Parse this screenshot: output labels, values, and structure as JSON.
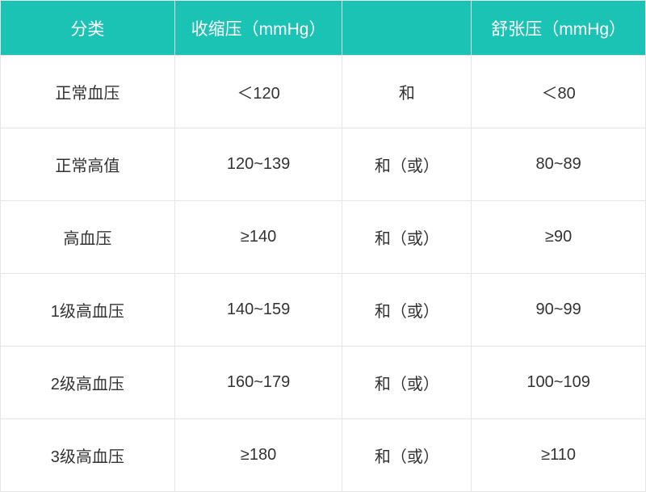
{
  "table": {
    "type": "table",
    "header_bg": "#1bc3b5",
    "header_text_color": "#ffffff",
    "cell_text_color": "#333333",
    "border_color": "#e6e6e6",
    "background_color": "#ffffff",
    "header_fontsize": 21,
    "cell_fontsize": 20,
    "columns": [
      {
        "key": "category",
        "label": "分类",
        "width": "27%"
      },
      {
        "key": "systolic",
        "label": "收缩压（mmHg）",
        "width": "26%"
      },
      {
        "key": "conj",
        "label": "",
        "width": "20%"
      },
      {
        "key": "diastolic",
        "label": "舒张压（mmHg）",
        "width": "27%"
      }
    ],
    "rows": [
      {
        "category": "正常血压",
        "systolic": "＜120",
        "conj": "和",
        "diastolic": "＜80"
      },
      {
        "category": "正常高值",
        "systolic": "120~139",
        "conj": "和（或）",
        "diastolic": "80~89"
      },
      {
        "category": "高血压",
        "systolic": "≥140",
        "conj": "和（或）",
        "diastolic": "≥90"
      },
      {
        "category": "1级高血压",
        "systolic": "140~159",
        "conj": "和（或）",
        "diastolic": "90~99"
      },
      {
        "category": "2级高血压",
        "systolic": "160~179",
        "conj": "和（或）",
        "diastolic": "100~109"
      },
      {
        "category": "3级高血压",
        "systolic": "≥180",
        "conj": "和（或）",
        "diastolic": "≥110"
      }
    ]
  }
}
